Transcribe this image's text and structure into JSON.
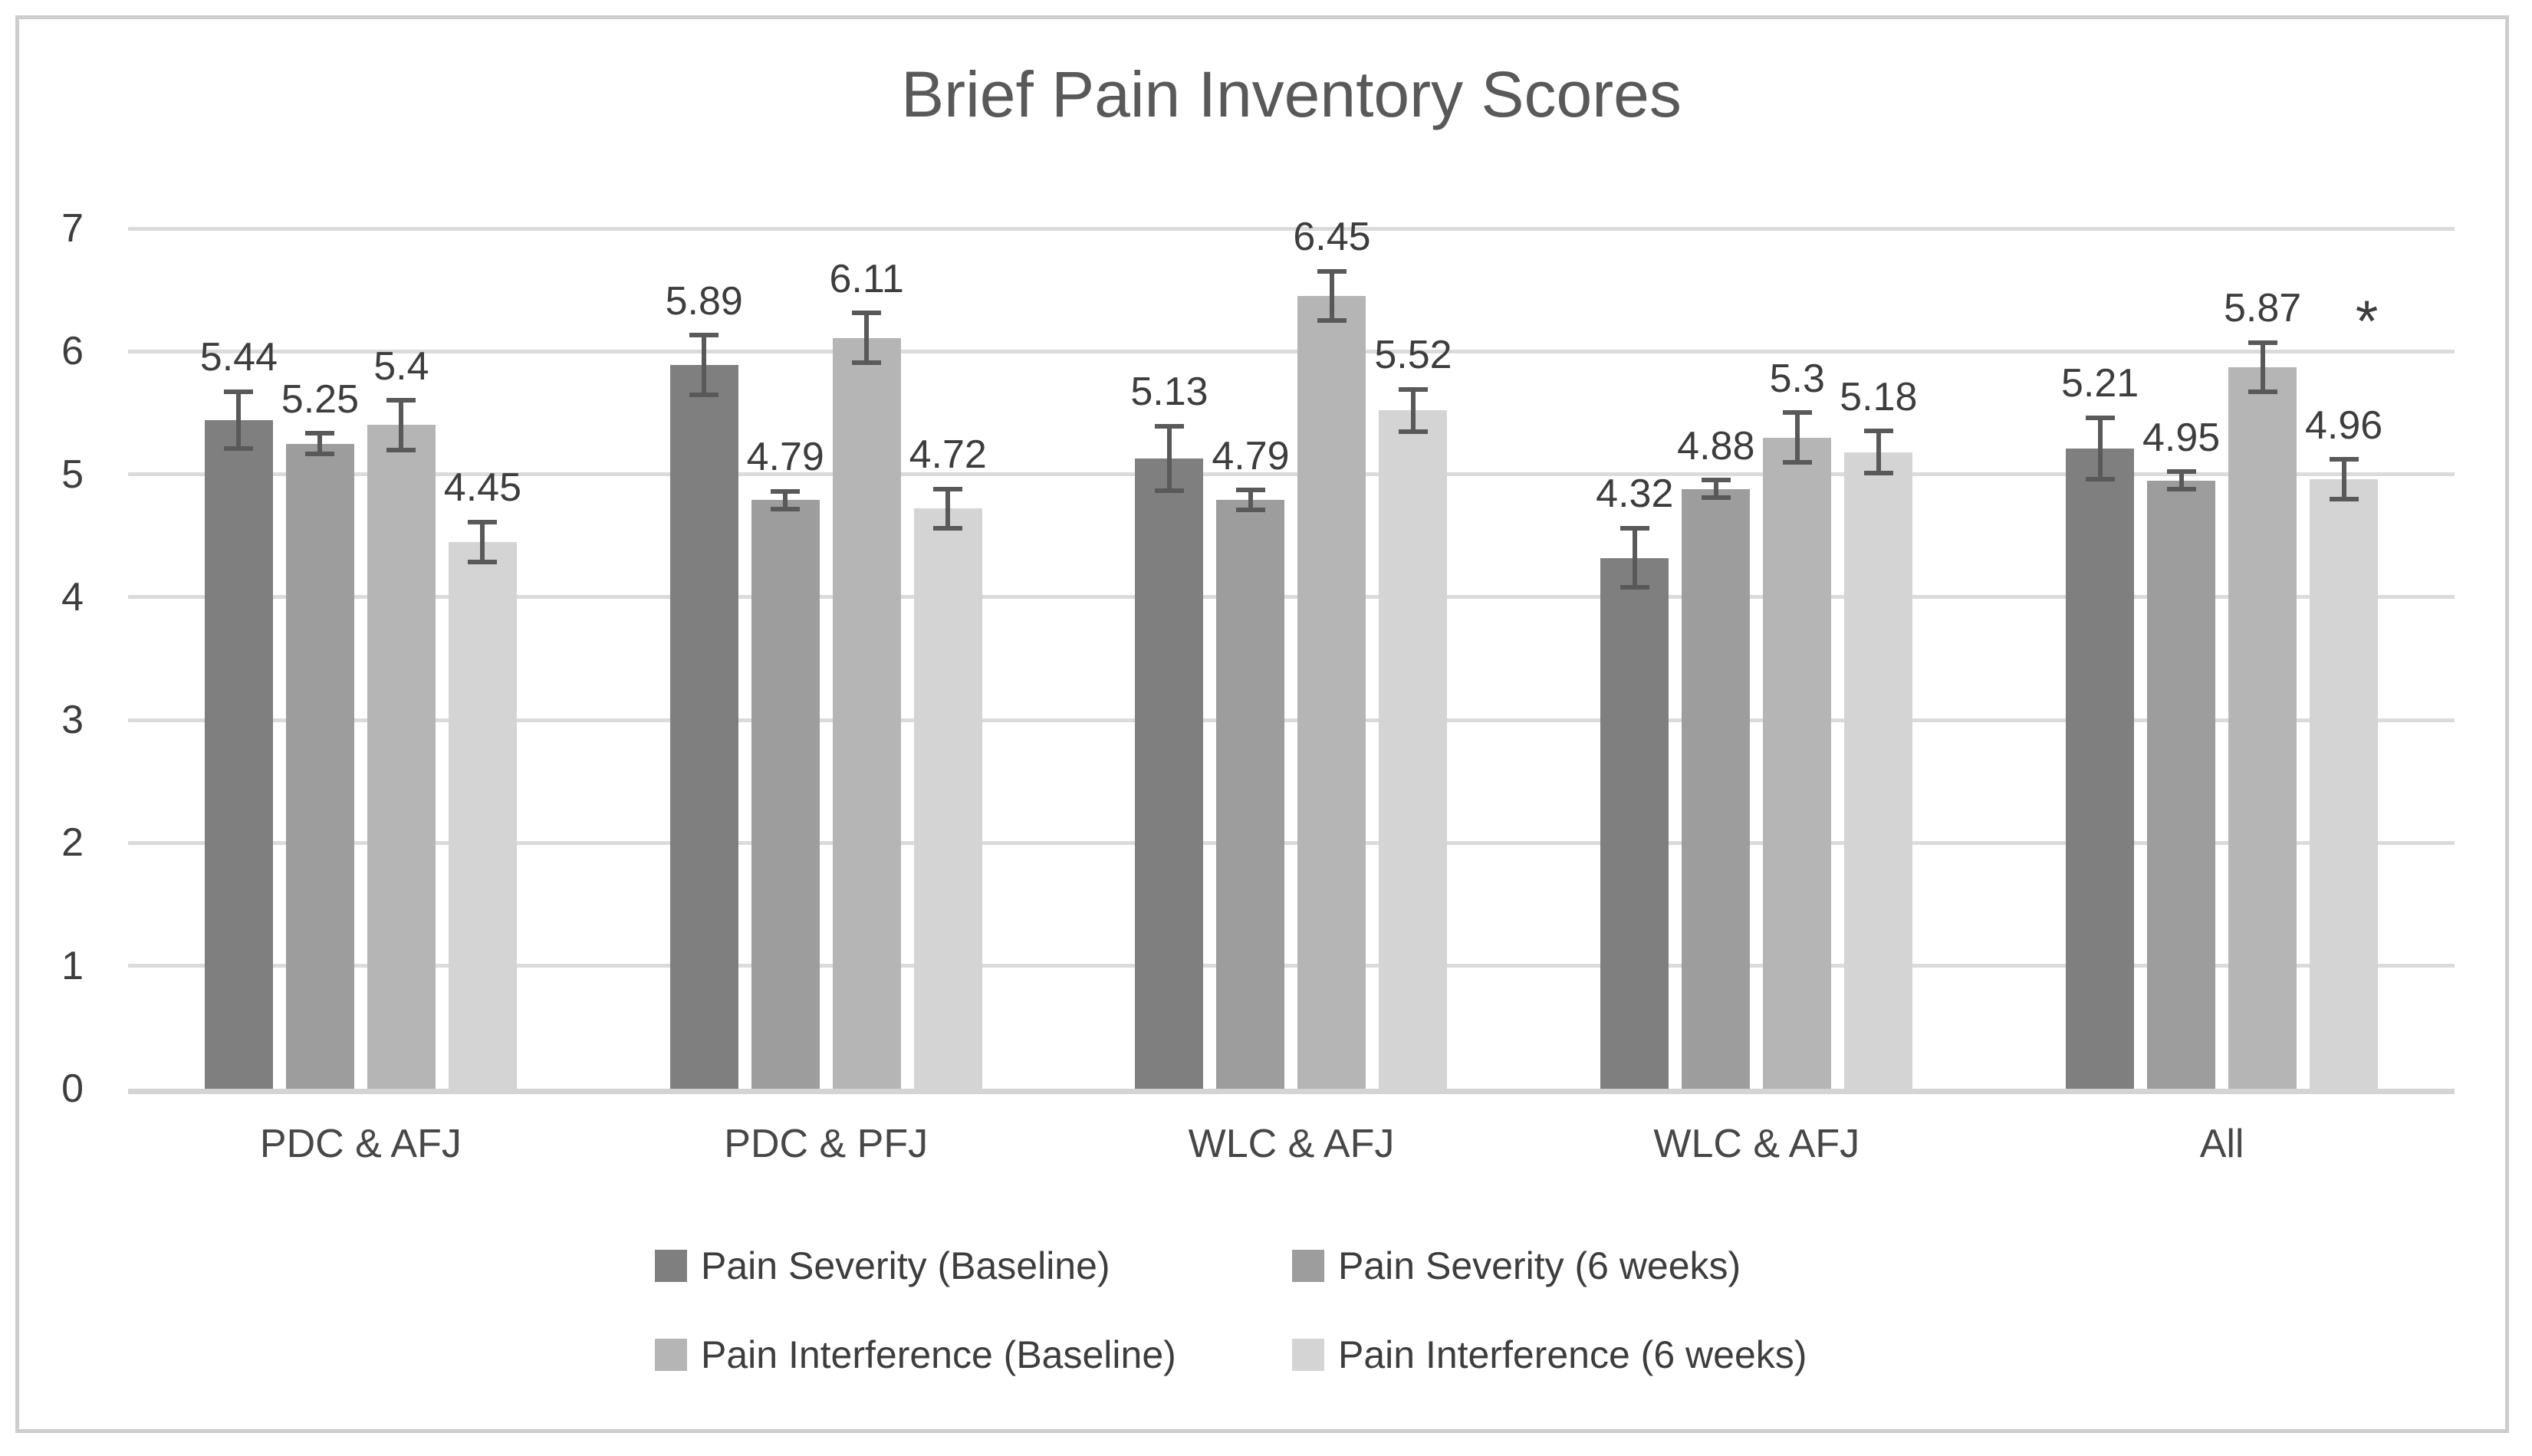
{
  "chart_data": {
    "type": "bar",
    "title": "Brief Pain Inventory Scores",
    "categories": [
      "PDC & AFJ",
      "PDC & PFJ",
      "WLC & AFJ",
      "WLC & AFJ",
      "All"
    ],
    "series": [
      {
        "name": "Pain Severity (Baseline)",
        "color": "#7f7f7f",
        "values": [
          5.44,
          5.89,
          5.13,
          4.32,
          5.21
        ],
        "errors": [
          0.25,
          0.26,
          0.28,
          0.26,
          0.27
        ]
      },
      {
        "name": "Pain Severity (6 weeks)",
        "color": "#9d9d9d",
        "values": [
          5.25,
          4.79,
          4.79,
          4.88,
          4.95
        ],
        "errors": [
          0.1,
          0.09,
          0.1,
          0.09,
          0.09
        ]
      },
      {
        "name": "Pain Interference (Baseline)",
        "color": "#b5b5b5",
        "values": [
          5.4,
          6.11,
          6.45,
          5.3,
          5.87
        ],
        "errors": [
          0.22,
          0.22,
          0.22,
          0.22,
          0.22
        ]
      },
      {
        "name": "Pain Interference (6 weeks)",
        "color": "#d4d4d4",
        "values": [
          4.45,
          4.72,
          5.52,
          5.18,
          4.96
        ],
        "errors": [
          0.18,
          0.18,
          0.19,
          0.19,
          0.18
        ]
      }
    ],
    "ylim": [
      0,
      7
    ],
    "yticks": [
      0,
      1,
      2,
      3,
      4,
      5,
      6,
      7
    ],
    "grid": true,
    "bar_value_labels": true,
    "legend_position": "bottom",
    "error_bar_color": "#595959",
    "gridline_color": "#dbdbdb",
    "annotations": [
      {
        "text": "*",
        "category_index": 4,
        "series_index": 3,
        "y": 6.0
      }
    ]
  }
}
